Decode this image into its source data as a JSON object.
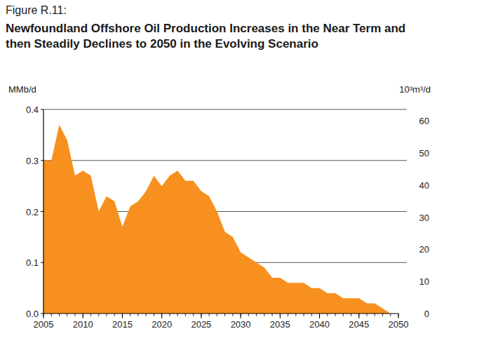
{
  "chart_data": {
    "type": "area",
    "figure_label": "Figure R.11:",
    "title": "Newfoundland Offshore Oil Production Increases in the Near Term and then Steadily Declines to 2050 in the Evolving Scenario",
    "ylabel": "MMb/d",
    "y2label": "10³m³/d",
    "x": [
      2005,
      2006,
      2007,
      2008,
      2009,
      2010,
      2011,
      2012,
      2013,
      2014,
      2015,
      2016,
      2017,
      2018,
      2019,
      2020,
      2021,
      2022,
      2023,
      2024,
      2025,
      2026,
      2027,
      2028,
      2029,
      2030,
      2031,
      2032,
      2033,
      2034,
      2035,
      2036,
      2037,
      2038,
      2039,
      2040,
      2041,
      2042,
      2043,
      2044,
      2045,
      2046,
      2047,
      2048,
      2049,
      2050
    ],
    "values": [
      0.3,
      0.3,
      0.37,
      0.34,
      0.27,
      0.28,
      0.27,
      0.2,
      0.23,
      0.22,
      0.17,
      0.21,
      0.22,
      0.24,
      0.27,
      0.25,
      0.27,
      0.28,
      0.26,
      0.26,
      0.24,
      0.23,
      0.2,
      0.16,
      0.15,
      0.12,
      0.11,
      0.1,
      0.09,
      0.07,
      0.07,
      0.06,
      0.06,
      0.06,
      0.05,
      0.05,
      0.04,
      0.04,
      0.03,
      0.03,
      0.03,
      0.02,
      0.02,
      0.01,
      0.0,
      0.0
    ],
    "color": "#f7901e",
    "xlim": [
      2005,
      2050
    ],
    "xticks": [
      2005,
      2010,
      2015,
      2020,
      2025,
      2030,
      2035,
      2040,
      2045,
      2050
    ],
    "ylim": [
      0,
      0.4
    ],
    "yticks": [
      {
        "value": 0,
        "label": "0.0"
      },
      0.1,
      0.2,
      0.3,
      0.4
    ],
    "y2lim": [
      0,
      63.6
    ],
    "y2ticks": [
      0,
      10,
      20,
      30,
      40,
      50,
      60
    ],
    "grid": true
  }
}
